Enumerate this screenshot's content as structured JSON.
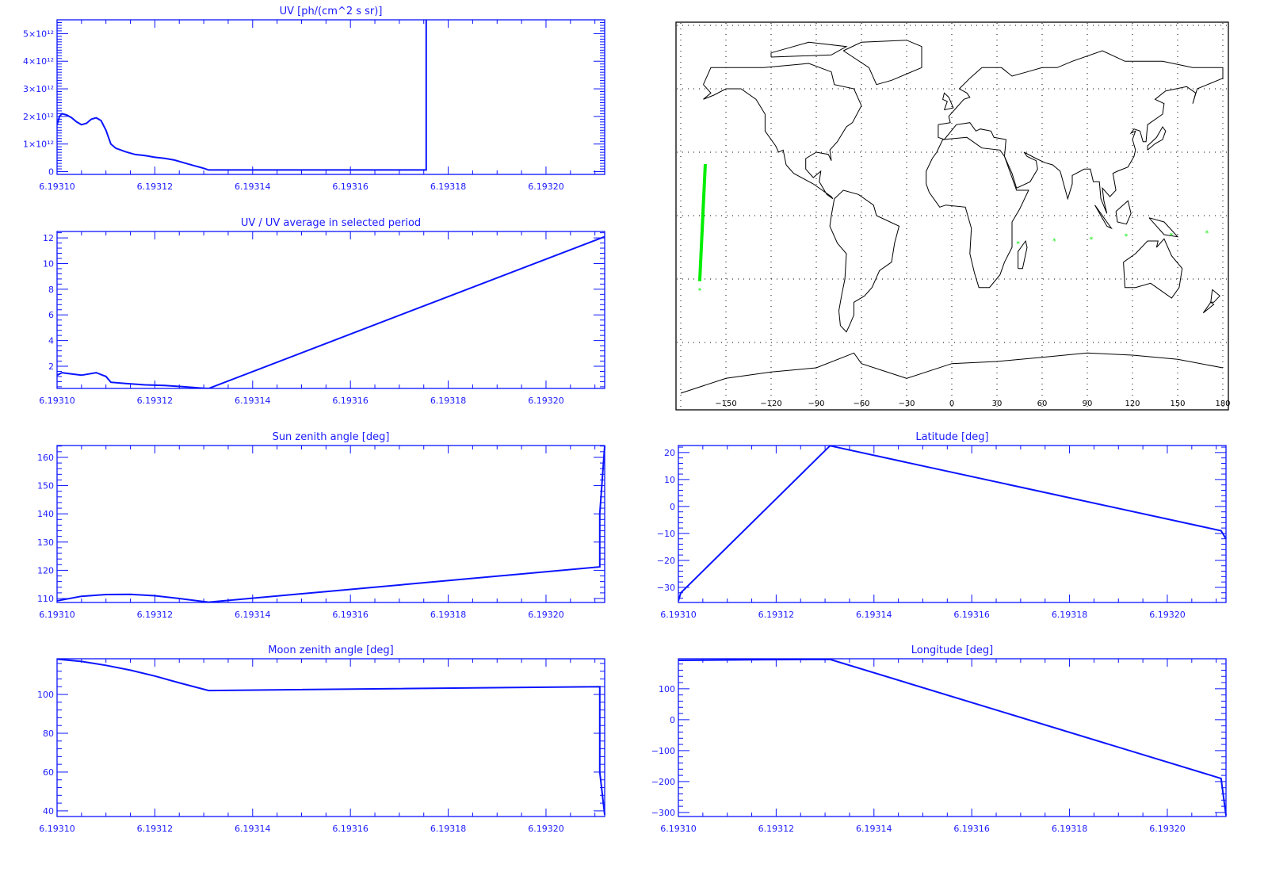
{
  "colors": {
    "plot": "#0a14ff",
    "map_track": "#00ee00",
    "coast": "#000000"
  },
  "chart_data": [
    {
      "id": "uv",
      "type": "line",
      "title": "UV [ph/(cm^2 s sr)]",
      "xlim": [
        6.1931,
        6.193212
      ],
      "ylim": [
        -100000000000.0,
        5500000000000.0
      ],
      "xticks": [
        6.1931,
        6.19312,
        6.19314,
        6.19316,
        6.19318,
        6.1932
      ],
      "xtick_labels": [
        "6.19310",
        "6.19312",
        "6.19314",
        "6.19316",
        "6.19318",
        "6.19320"
      ],
      "yticks": [
        0,
        1000000000000.0,
        2000000000000.0,
        3000000000000.0,
        4000000000000.0,
        5000000000000.0
      ],
      "ytick_labels": [
        "0",
        "1×10¹²",
        "2×10¹²",
        "3×10¹²",
        "4×10¹²",
        "5×10¹²"
      ],
      "x": [
        6.1931,
        6.1931005,
        6.193101,
        6.193102,
        6.193103,
        6.193104,
        6.193105,
        6.193106,
        6.193107,
        6.193108,
        6.193109,
        6.19311,
        6.193111,
        6.193112,
        6.193114,
        6.193116,
        6.193118,
        6.19312,
        6.193122,
        6.193124,
        6.193126,
        6.193128,
        6.19313,
        6.193131,
        6.1931755,
        6.1931755
      ],
      "y": [
        1700000000000.0,
        2000000000000.0,
        2100000000000.0,
        2050000000000.0,
        1950000000000.0,
        1800000000000.0,
        1700000000000.0,
        1750000000000.0,
        1900000000000.0,
        1950000000000.0,
        1850000000000.0,
        1500000000000.0,
        1000000000000.0,
        850000000000.0,
        720000000000.0,
        620000000000.0,
        580000000000.0,
        520000000000.0,
        480000000000.0,
        420000000000.0,
        320000000000.0,
        220000000000.0,
        120000000000.0,
        60000000000.0,
        60000000000.0,
        5500000000000.0
      ]
    },
    {
      "id": "uv-ratio",
      "type": "line",
      "title": "UV / UV average in selected period",
      "xlim": [
        6.1931,
        6.193212
      ],
      "ylim": [
        0.27,
        12.5
      ],
      "xticks": [
        6.1931,
        6.19312,
        6.19314,
        6.19316,
        6.19318,
        6.1932
      ],
      "xtick_labels": [
        "6.19310",
        "6.19312",
        "6.19314",
        "6.19316",
        "6.19318",
        "6.19320"
      ],
      "yticks": [
        2,
        4,
        6,
        8,
        10,
        12
      ],
      "ytick_labels": [
        "2",
        "4",
        "6",
        "8",
        "10",
        "12"
      ],
      "x": [
        6.1931,
        6.193101,
        6.193103,
        6.193105,
        6.193108,
        6.19311,
        6.193111,
        6.193114,
        6.193118,
        6.193122,
        6.193126,
        6.19313,
        6.193131,
        6.193212
      ],
      "y": [
        1.3,
        1.5,
        1.4,
        1.3,
        1.5,
        1.2,
        0.75,
        0.65,
        0.55,
        0.5,
        0.4,
        0.28,
        0.27,
        12.1
      ]
    },
    {
      "id": "sun-zenith",
      "type": "line",
      "title": "Sun zenith angle [deg]",
      "xlim": [
        6.1931,
        6.193212
      ],
      "ylim": [
        108.6,
        164.2
      ],
      "xticks": [
        6.1931,
        6.19312,
        6.19314,
        6.19316,
        6.19318,
        6.1932
      ],
      "xtick_labels": [
        "6.19310",
        "6.19312",
        "6.19314",
        "6.19316",
        "6.19318",
        "6.19320"
      ],
      "yticks": [
        110,
        120,
        130,
        140,
        150,
        160
      ],
      "ytick_labels": [
        "110",
        "120",
        "130",
        "140",
        "150",
        "160"
      ],
      "x": [
        6.1931,
        6.193105,
        6.19311,
        6.193115,
        6.19312,
        6.193125,
        6.193131,
        6.193211,
        6.193211,
        6.193212
      ],
      "y": [
        109.2,
        110.8,
        111.4,
        111.5,
        111.0,
        110.0,
        108.7,
        121.2,
        140,
        164
      ]
    },
    {
      "id": "moon-zenith",
      "type": "line",
      "title": "Moon zenith angle [deg]",
      "xlim": [
        6.1931,
        6.193212
      ],
      "ylim": [
        37.1,
        118.4
      ],
      "xticks": [
        6.1931,
        6.19312,
        6.19314,
        6.19316,
        6.19318,
        6.1932
      ],
      "xtick_labels": [
        "6.19310",
        "6.19312",
        "6.19314",
        "6.19316",
        "6.19318",
        "6.19320"
      ],
      "yticks": [
        40,
        60,
        80,
        100
      ],
      "ytick_labels": [
        "40",
        "60",
        "80",
        "100"
      ],
      "x": [
        6.1931,
        6.193105,
        6.19311,
        6.193115,
        6.19312,
        6.193125,
        6.193131,
        6.193211,
        6.193211,
        6.193212
      ],
      "y": [
        118.2,
        117,
        115,
        112.5,
        109.5,
        106,
        102,
        104,
        60,
        38
      ]
    },
    {
      "id": "latitude",
      "type": "line",
      "title": "Latitude [deg]",
      "xlim": [
        6.1931,
        6.193212
      ],
      "ylim": [
        -35.6,
        22.6
      ],
      "xticks": [
        6.1931,
        6.19312,
        6.19314,
        6.19316,
        6.19318,
        6.1932
      ],
      "xtick_labels": [
        "6.19310",
        "6.19312",
        "6.19314",
        "6.19316",
        "6.19318",
        "6.19320"
      ],
      "yticks": [
        -30,
        -20,
        -10,
        0,
        10,
        20
      ],
      "ytick_labels": [
        "−30",
        "−20",
        "−10",
        "0",
        "10",
        "20"
      ],
      "x": [
        6.1931,
        6.1931005,
        6.193131,
        6.193211,
        6.193212
      ],
      "y": [
        -35,
        -32,
        22.5,
        -9,
        -12
      ]
    },
    {
      "id": "longitude",
      "type": "line",
      "title": "Longitude [deg]",
      "xlim": [
        6.1931,
        6.193212
      ],
      "ylim": [
        -313,
        197
      ],
      "xticks": [
        6.1931,
        6.19312,
        6.19314,
        6.19316,
        6.19318,
        6.1932
      ],
      "xtick_labels": [
        "6.19310",
        "6.19312",
        "6.19314",
        "6.19316",
        "6.19318",
        "6.19320"
      ],
      "yticks": [
        -300,
        -200,
        -100,
        0,
        100
      ],
      "ytick_labels": [
        "−300",
        "−200",
        "−100",
        "0",
        "100"
      ],
      "x": [
        6.1931,
        6.193115,
        6.193131,
        6.193211,
        6.193212
      ],
      "y": [
        192,
        194,
        195,
        -190,
        -310
      ]
    }
  ],
  "map": {
    "lon_ticks": [
      -150,
      -120,
      -90,
      -60,
      -30,
      0,
      30,
      60,
      90,
      120,
      150,
      180
    ],
    "lon_tick_labels": [
      "−150",
      "−120",
      "−90",
      "−60",
      "−30",
      "0",
      "30",
      "60",
      "90",
      "120",
      "150",
      "180"
    ],
    "track": {
      "lon": [
        -163.7,
        -167.4
      ],
      "lat": [
        24.4,
        -31
      ]
    },
    "points": {
      "lon": [
        -167.4,
        44,
        68,
        92.6,
        115.8,
        145.8,
        169.5
      ],
      "lat": [
        -35,
        -13,
        -11.6,
        -10.9,
        -9.4,
        -9,
        -7.9
      ]
    }
  }
}
